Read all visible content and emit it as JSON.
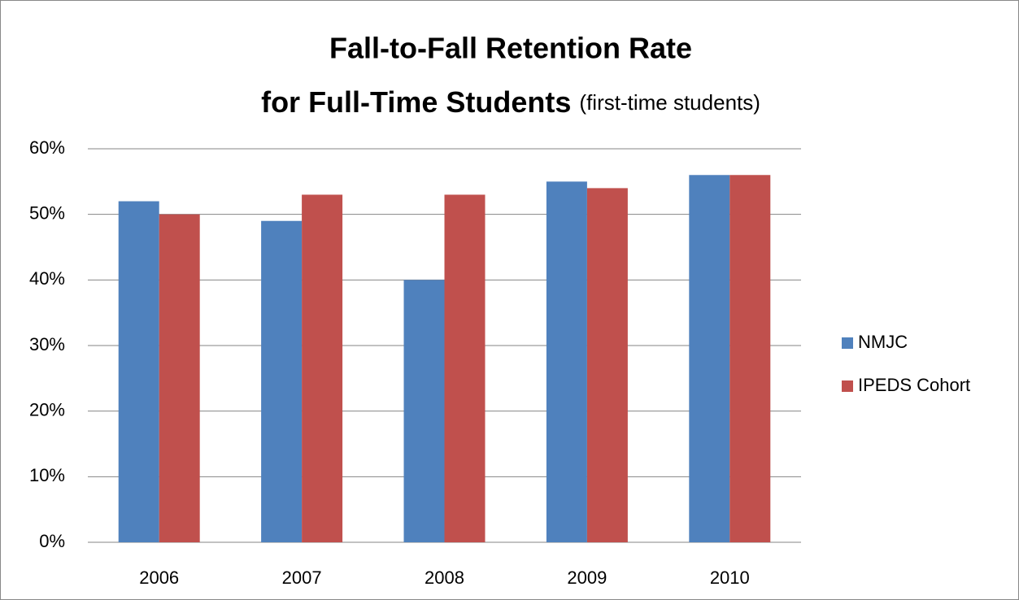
{
  "chart_data": {
    "type": "bar",
    "title": [
      "Fall-to-Fall Retention Rate",
      "for Full-Time Students"
    ],
    "subtitle": "(first-time students)",
    "categories": [
      "2006",
      "2007",
      "2008",
      "2009",
      "2010"
    ],
    "series": [
      {
        "name": "NMJC",
        "color": "#4f81bd",
        "values": [
          52,
          49,
          40,
          55,
          56
        ]
      },
      {
        "name": "IPEDS Cohort",
        "color": "#c0504d",
        "values": [
          50,
          53,
          53,
          54,
          56
        ]
      }
    ],
    "ylim": [
      0,
      60
    ],
    "yticks": [
      {
        "value": 0,
        "label": "0%"
      },
      {
        "value": 10,
        "label": "10%"
      },
      {
        "value": 20,
        "label": "20%"
      },
      {
        "value": 30,
        "label": "30%"
      },
      {
        "value": 40,
        "label": "40%"
      },
      {
        "value": 50,
        "label": "50%"
      },
      {
        "value": 60,
        "label": "60%"
      }
    ],
    "grid": true,
    "legend": "right"
  }
}
